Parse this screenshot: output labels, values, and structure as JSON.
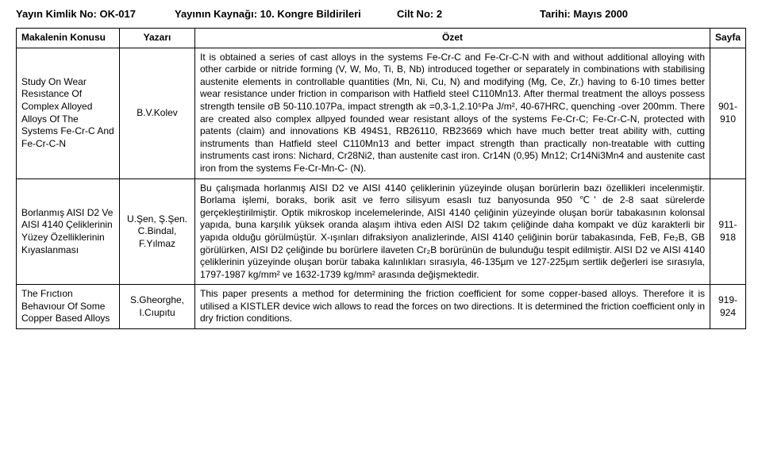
{
  "header": {
    "pubId": "Yayın Kimlik No: OK-017",
    "source": "Yayının Kaynağı: 10. Kongre Bildirileri",
    "volume": "Cilt No: 2",
    "date": "Tarihi: Mayıs 2000"
  },
  "table": {
    "columns": [
      "Makalenin Konusu",
      "Yazarı",
      "Özet",
      "Sayfa"
    ],
    "rows": [
      {
        "topic": "Study On Wear Resıstance Of Complex Alloyed Alloys Of The Systems Fe-Cr-C And Fe-Cr-C-N",
        "author": "B.V.Kolev",
        "summary": "It is obtained a series of cast alloys in the systems Fe-Cr-C and Fe-Cr-C-N with and without additional alloying with other carbide or nitride forming (V, W, Mo, Ti, B, Nb) introduced together or separately in combinations with stabilising austenite elements in controllable quantities (Mn, Ni, Cu, N) and modifying (Mg, Ce, Zr,) having to 6-10 times better wear resistance under friction in comparison with Hatfield steel C110Mn13. After thermal treatment the alloys possess strength tensile σB 50-110.107Pa, impact strength ak =0,3-1,2.10⁵Pa J/m², 40-67HRC, quenching -over 200mm. There are created also complex allpyed founded wear resistant alloys of the systems Fe-Cr-C; Fe-Cr-C-N, protected with patents (claim) and innovations KB 494S1, RB26110, RB23669 which have much better treat ability with, cutting instruments than Hatfield steel C110Mn13 and better impact strength than practically non-treatable with cutting instruments cast irons: Nichard, Cr28Ni2, than austenite cast iron. Cr14N (0,95) Mn12; Cr14Ni3Mn4 and austenite cast iron from the systems Fe-Cr-Mn-C- (N).",
        "page": "901-910"
      },
      {
        "topic": "Borlanmış AISI D2 Ve AISI 4140 Çeliklerinin Yüzey Özelliklerinin Kıyaslanması",
        "author": "U.Şen, Ş.Şen. C.Bindal, F.Yılmaz",
        "summary": "Bu çalışmada horlanmış AISI D2 ve AISI 4140 çeliklerinin yüzeyinde oluşan borürlerin bazı özellikleri incelenmiştir. Borlama işlemi, boraks, borik asit ve ferro silisyum esaslı tuz banyosunda 950 ℃' de 2-8 saat sürelerde gerçekleştirilmiştir. Optik mikroskop incelemelerinde, AISI 4140 çeliğinin yüzeyinde oluşan borür tabakasının kolonsal yapıda, buna karşılık yüksek oranda alaşım ihtiva eden AISI D2 takım çeliğinde daha kompakt ve düz karakterli bir yapıda olduğu görülmüştür. X-ışınları difraksiyon analizlerinde, AISI 4140 çeliğinin borür tabakasında, FeB, Fe₂B, GB görülürken, AISI D2 çeliğinde bu borürlere ilaveten Cr₂B borürünün de bulunduğu tespit edilmiştir. AISI D2 ve AISI 4140 çeliklerinin yüzeyinde oluşan borür tabaka kalınlıkları sırasıyla, 46-135µm ve 127-225µm sertlik değerleri ise sırasıyla, 1797-1987 kg/mm² ve 1632-1739 kg/mm² arasında değişmektedir.",
        "page": "911-918"
      },
      {
        "topic": "The Frıctıon Behavıour Of Some Copper Based Alloys",
        "author": "S.Gheorghe, I.Cıupıtu",
        "summary": "This paper presents a method for determining the friction coefficient for some copper-based alloys. Therefore it is utilised a KISTLER device wich allows to read the forces on two directions. It is determined the friction coefficient only in dry friction conditions.",
        "page": "919-924"
      }
    ]
  }
}
